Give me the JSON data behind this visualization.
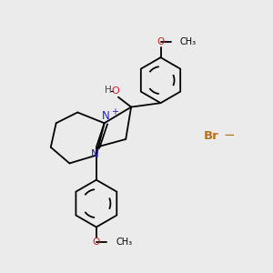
{
  "background_color": "#ebebeb",
  "bond_color": "#000000",
  "N_color": "#2222cc",
  "O_color": "#cc2222",
  "Br_color": "#b87020",
  "H_color": "#444444",
  "figsize": [
    3.0,
    3.0
  ],
  "dpi": 100,
  "xlim": [
    0,
    10
  ],
  "ylim": [
    0,
    10
  ]
}
